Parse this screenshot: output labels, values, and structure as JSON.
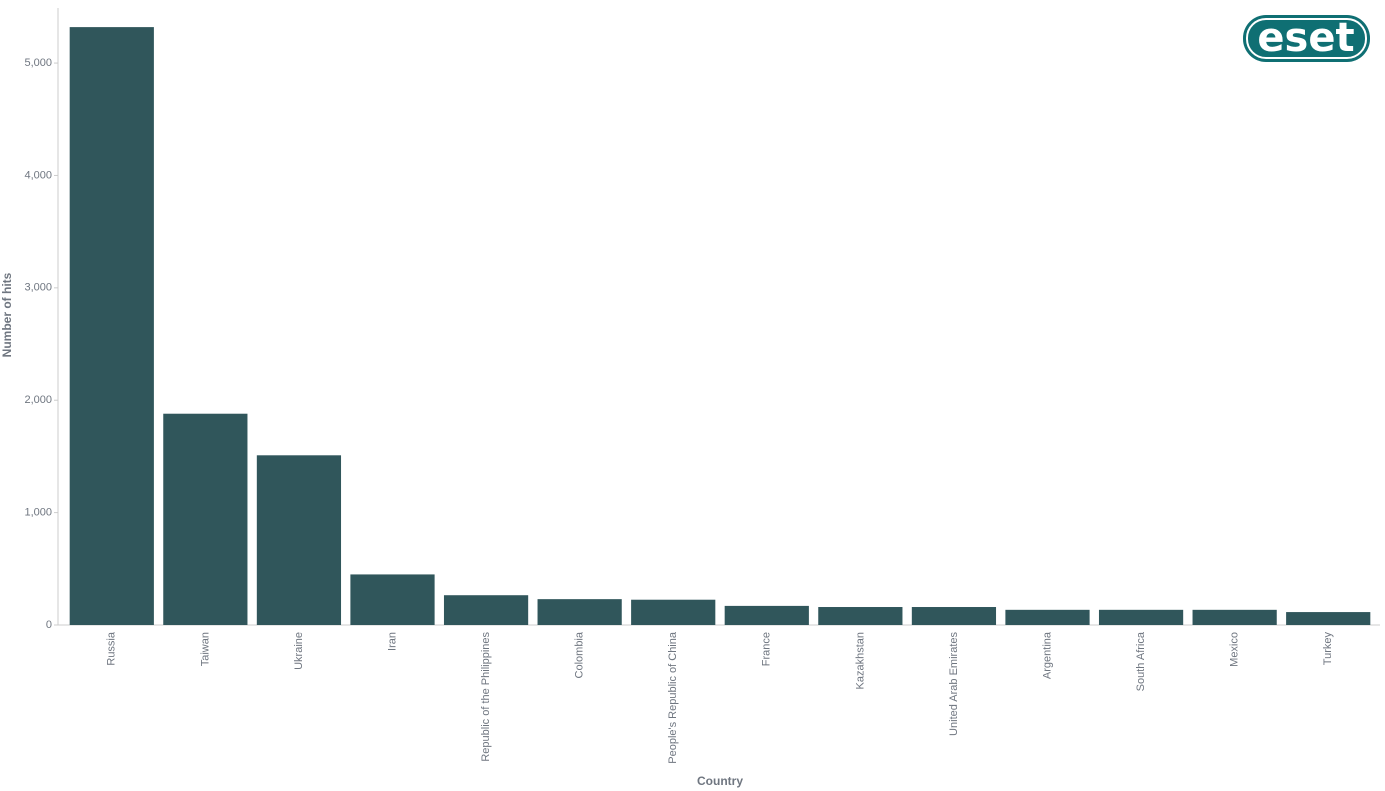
{
  "chart_data": {
    "type": "bar",
    "logo": "eset",
    "x_label": "Country",
    "y_label": "Number of hits",
    "categories": [
      "Russia",
      "Taiwan",
      "Ukraine",
      "Iran",
      "Republic of the Philippines",
      "Colombia",
      "People's Republic of China",
      "France",
      "Kazakhstan",
      "United Arab Emirates",
      "Argentina",
      "South Africa",
      "Mexico",
      "Turkey"
    ],
    "values": [
      5320,
      1880,
      1510,
      450,
      265,
      230,
      225,
      170,
      160,
      160,
      135,
      135,
      135,
      115
    ],
    "color": "#30565b",
    "ylim": [
      0,
      5490
    ],
    "yticks": [
      0,
      {
        "value": 1000,
        "label": "1,000"
      },
      {
        "value": 2000,
        "label": "2,000"
      },
      {
        "value": 3000,
        "label": "3,000"
      },
      {
        "value": 4000,
        "label": "4,000"
      },
      {
        "value": 5000,
        "label": "5,000"
      }
    ],
    "grid": false
  }
}
